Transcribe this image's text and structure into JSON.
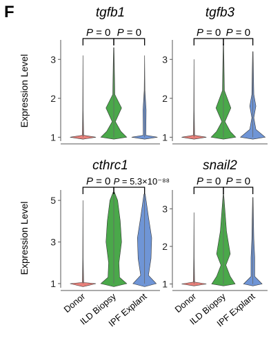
{
  "figure": {
    "panel_letter": "F"
  },
  "colors": {
    "donor": "#e8807a",
    "ild": "#4aa84a",
    "ipf": "#6f95d6",
    "axis": "#555555",
    "text": "#000000"
  },
  "chart_data": [
    {
      "type": "violin",
      "title": "tgfb1",
      "ylabel": "Expression Level",
      "ylim": [
        0.9,
        3.5
      ],
      "yticks": [
        1,
        2,
        3
      ],
      "categories": [
        "Donor",
        "ILD Biopsy",
        "IPF Explant"
      ],
      "category_labels_shown": false,
      "comparisons": [
        {
          "from": "Donor",
          "to": "ILD Biopsy",
          "label": "P = 0"
        },
        {
          "from": "ILD Biopsy",
          "to": "IPF Explant",
          "label": "P = 0"
        }
      ],
      "series": [
        {
          "category": "Donor",
          "color": "#e8807a",
          "max": 3.1,
          "density": [
            [
              1.0,
              1.0
            ],
            [
              1.05,
              0.05
            ],
            [
              1.7,
              0.02
            ]
          ]
        },
        {
          "category": "ILD Biopsy",
          "color": "#4aa84a",
          "max": 3.3,
          "density": [
            [
              1.0,
              1.0
            ],
            [
              1.15,
              0.55
            ],
            [
              1.4,
              0.12
            ],
            [
              1.75,
              0.6
            ],
            [
              2.1,
              0.08
            ],
            [
              3.3,
              0.02
            ]
          ]
        },
        {
          "category": "IPF Explant",
          "color": "#6f95d6",
          "max": 3.1,
          "density": [
            [
              1.0,
              1.0
            ],
            [
              1.05,
              0.1
            ],
            [
              1.7,
              0.12
            ],
            [
              2.2,
              0.03
            ]
          ]
        }
      ]
    },
    {
      "type": "violin",
      "title": "tgfb3",
      "ylabel": "",
      "ylim": [
        0.9,
        3.5
      ],
      "yticks": [
        1,
        2,
        3
      ],
      "categories": [
        "Donor",
        "ILD Biopsy",
        "IPF Explant"
      ],
      "category_labels_shown": false,
      "comparisons": [
        {
          "from": "Donor",
          "to": "ILD Biopsy",
          "label": "P = 0"
        },
        {
          "from": "ILD Biopsy",
          "to": "IPF Explant",
          "label": "P = 0"
        }
      ],
      "series": [
        {
          "category": "Donor",
          "color": "#e8807a",
          "max": 3.0,
          "density": [
            [
              1.0,
              1.0
            ],
            [
              1.05,
              0.05
            ],
            [
              1.7,
              0.02
            ]
          ]
        },
        {
          "category": "ILD Biopsy",
          "color": "#4aa84a",
          "max": 3.4,
          "density": [
            [
              1.0,
              1.0
            ],
            [
              1.15,
              0.55
            ],
            [
              1.4,
              0.12
            ],
            [
              1.75,
              0.6
            ],
            [
              2.2,
              0.08
            ],
            [
              3.4,
              0.02
            ]
          ]
        },
        {
          "category": "IPF Explant",
          "color": "#6f95d6",
          "max": 3.2,
          "density": [
            [
              1.0,
              1.0
            ],
            [
              1.2,
              0.25
            ],
            [
              1.5,
              0.08
            ],
            [
              1.8,
              0.25
            ],
            [
              2.1,
              0.08
            ],
            [
              3.2,
              0.02
            ]
          ]
        }
      ]
    },
    {
      "type": "violin",
      "title": "cthrc1",
      "ylabel": "Expression Level",
      "ylim": [
        0.8,
        5.5
      ],
      "yticks": [
        1,
        3,
        5
      ],
      "categories": [
        "Donor",
        "ILD Biopsy",
        "IPF Explant"
      ],
      "category_labels_shown": true,
      "comparisons": [
        {
          "from": "Donor",
          "to": "ILD Biopsy",
          "label": "P = 0"
        },
        {
          "from": "ILD Biopsy",
          "to": "IPF Explant",
          "label": "P = 5.3×10⁻⁸⁸"
        }
      ],
      "series": [
        {
          "category": "Donor",
          "color": "#e8807a",
          "max": 5.0,
          "density": [
            [
              1.0,
              1.0
            ],
            [
              1.05,
              0.05
            ],
            [
              2.2,
              0.02
            ]
          ]
        },
        {
          "category": "ILD Biopsy",
          "color": "#4aa84a",
          "max": 5.4,
          "density": [
            [
              1.0,
              1.0
            ],
            [
              1.3,
              0.45
            ],
            [
              2.0,
              0.4
            ],
            [
              3.0,
              0.6
            ],
            [
              4.0,
              0.5
            ],
            [
              5.0,
              0.3
            ],
            [
              5.4,
              0.05
            ]
          ]
        },
        {
          "category": "IPF Explant",
          "color": "#6f95d6",
          "max": 5.3,
          "density": [
            [
              1.0,
              0.9
            ],
            [
              1.4,
              0.3
            ],
            [
              2.2,
              0.5
            ],
            [
              3.2,
              0.55
            ],
            [
              4.2,
              0.3
            ],
            [
              5.3,
              0.05
            ]
          ]
        }
      ]
    },
    {
      "type": "violin",
      "title": "snail2",
      "ylabel": "",
      "ylim": [
        0.9,
        3.5
      ],
      "yticks": [
        1,
        2,
        3
      ],
      "categories": [
        "Donor",
        "ILD Biopsy",
        "IPF Explant"
      ],
      "category_labels_shown": true,
      "comparisons": [
        {
          "from": "Donor",
          "to": "ILD Biopsy",
          "label": "P = 0"
        },
        {
          "from": "ILD Biopsy",
          "to": "IPF Explant",
          "label": "P = 0"
        }
      ],
      "series": [
        {
          "category": "Donor",
          "color": "#e8807a",
          "max": 2.9,
          "density": [
            [
              1.0,
              1.0
            ],
            [
              1.05,
              0.05
            ],
            [
              1.7,
              0.02
            ]
          ]
        },
        {
          "category": "ILD Biopsy",
          "color": "#4aa84a",
          "max": 3.4,
          "density": [
            [
              1.0,
              0.95
            ],
            [
              1.2,
              0.55
            ],
            [
              1.5,
              0.2
            ],
            [
              1.8,
              0.55
            ],
            [
              2.4,
              0.25
            ],
            [
              3.4,
              0.02
            ]
          ]
        },
        {
          "category": "IPF Explant",
          "color": "#6f95d6",
          "max": 3.3,
          "density": [
            [
              1.0,
              0.75
            ],
            [
              1.2,
              0.15
            ],
            [
              1.7,
              0.15
            ],
            [
              2.2,
              0.08
            ],
            [
              3.3,
              0.02
            ]
          ]
        }
      ]
    }
  ]
}
